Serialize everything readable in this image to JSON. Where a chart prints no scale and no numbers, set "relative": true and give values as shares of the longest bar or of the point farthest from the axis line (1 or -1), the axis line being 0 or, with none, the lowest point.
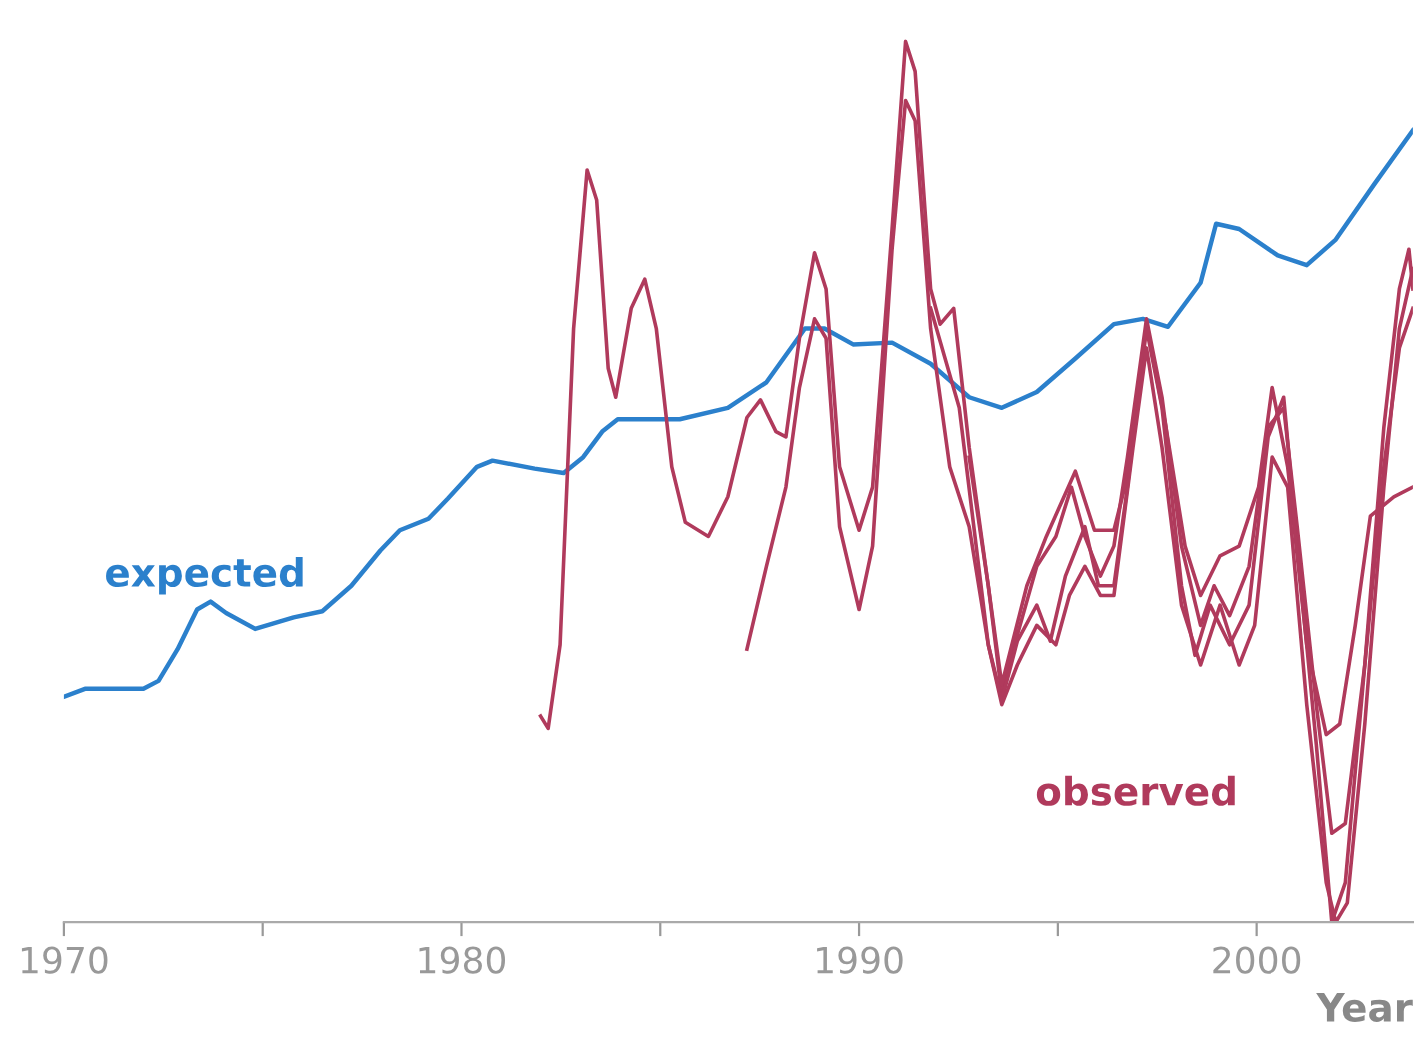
{
  "chart_data": {
    "type": "line",
    "relative": true,
    "xlabel": "Year",
    "xlim": [
      1970,
      2003.93
    ],
    "xticks": [
      1970,
      {
        "value": 1975,
        "label": null
      },
      1980,
      {
        "value": 1985,
        "label": null
      },
      1990,
      {
        "value": 1995,
        "label": null
      },
      2000
    ],
    "grid": false,
    "legend": false,
    "marker": "none",
    "line_style": "solid",
    "series": [
      {
        "name": "expected",
        "color": "#2b80cc",
        "x": [
          1970.0,
          1970.53,
          1972.0,
          1972.38,
          1972.86,
          1973.35,
          1973.69,
          1974.08,
          1974.81,
          1975.78,
          1976.5,
          1977.23,
          1977.96,
          1978.45,
          1979.17,
          1979.66,
          1980.39,
          1980.78,
          1981.84,
          1982.57,
          1983.06,
          1983.54,
          1983.93,
          1985.49,
          1986.7,
          1987.67,
          1988.64,
          1989.13,
          1989.85,
          1990.83,
          1991.8,
          1992.77,
          1993.59,
          1994.47,
          1995.44,
          1996.41,
          1997.14,
          1997.77,
          1998.59,
          1998.98,
          1999.56,
          2000.53,
          2001.26,
          2001.99,
          2002.96,
          2003.93
        ],
        "values": [
          0.256,
          0.265,
          0.265,
          0.274,
          0.31,
          0.355,
          0.364,
          0.351,
          0.333,
          0.346,
          0.353,
          0.382,
          0.422,
          0.445,
          0.458,
          0.481,
          0.517,
          0.524,
          0.515,
          0.51,
          0.528,
          0.557,
          0.571,
          0.571,
          0.584,
          0.613,
          0.674,
          0.674,
          0.656,
          0.658,
          0.634,
          0.596,
          0.584,
          0.602,
          0.64,
          0.679,
          0.685,
          0.676,
          0.726,
          0.793,
          0.787,
          0.757,
          0.746,
          0.775,
          0.838,
          0.899
        ]
      },
      {
        "name": "observed",
        "color": "#b03a5c",
        "x": [
          1981.99,
          1982.18,
          1982.48,
          1982.82,
          1983.16,
          1983.4,
          1983.69,
          1983.88,
          1984.27,
          1984.61,
          1984.9,
          1985.29,
          1985.63,
          1986.21,
          1986.7,
          1987.18,
          1987.52,
          1987.91,
          1988.16,
          1988.5,
          1988.88,
          1989.17,
          1989.51,
          1990.0,
          1990.34,
          1990.83,
          1991.17,
          1991.41,
          1991.8,
          1992.04,
          1992.38,
          1992.77,
          1993.25,
          1993.59,
          1993.98,
          1994.47,
          1994.95,
          1995.34,
          1995.68,
          1996.07,
          1996.41,
          1996.75,
          1997.23,
          1997.62,
          1998.11,
          1998.59,
          1998.93,
          1999.32,
          1999.81,
          2000.29,
          2000.68,
          2001.02,
          2001.5,
          2001.89,
          2002.23,
          2002.72,
          2003.2,
          2003.59,
          2003.83,
          2003.93
        ],
        "values": [
          0.234,
          0.22,
          0.315,
          0.674,
          0.854,
          0.82,
          0.629,
          0.596,
          0.697,
          0.73,
          0.674,
          0.517,
          0.454,
          0.438,
          0.483,
          0.573,
          0.593,
          0.557,
          0.551,
          0.663,
          0.76,
          0.719,
          0.517,
          0.445,
          0.494,
          0.787,
          1.0,
          0.966,
          0.719,
          0.679,
          0.697,
          0.539,
          0.382,
          0.258,
          0.326,
          0.404,
          0.438,
          0.494,
          0.438,
          0.393,
          0.427,
          0.528,
          0.685,
          0.596,
          0.427,
          0.337,
          0.382,
          0.348,
          0.404,
          0.562,
          0.584,
          0.449,
          0.247,
          0.101,
          0.112,
          0.292,
          0.562,
          0.719,
          0.764,
          0.719
        ]
      },
      {
        "color": "#b03a5c",
        "x": [
          1987.18,
          1987.67,
          1988.16,
          1988.5,
          1988.88,
          1989.17,
          1989.51,
          1990.0,
          1990.34,
          1990.83,
          1991.17,
          1991.41,
          1991.8,
          1992.28,
          1992.77,
          1993.25,
          1993.59,
          1993.98,
          1994.47,
          1994.81,
          1995.19,
          1995.68,
          1996.02,
          1996.41,
          1996.75,
          1997.23,
          1997.62,
          1998.11,
          1998.45,
          1998.83,
          1999.32,
          1999.81,
          2000.29,
          2000.68,
          2001.02,
          2001.5,
          2001.89,
          2002.23,
          2002.72,
          2003.2,
          2003.59,
          2003.93
        ],
        "values": [
          0.31,
          0.404,
          0.494,
          0.607,
          0.685,
          0.663,
          0.449,
          0.355,
          0.427,
          0.764,
          0.933,
          0.91,
          0.674,
          0.517,
          0.449,
          0.315,
          0.252,
          0.319,
          0.36,
          0.319,
          0.393,
          0.449,
          0.382,
          0.382,
          0.494,
          0.674,
          0.584,
          0.382,
          0.303,
          0.36,
          0.315,
          0.36,
          0.551,
          0.596,
          0.427,
          0.202,
          0.0,
          0.045,
          0.292,
          0.517,
          0.652,
          0.697
        ]
      },
      {
        "color": "#b03a5c",
        "x": [
          1992.77,
          1993.25,
          1993.59,
          1994.22,
          1994.71,
          1995.44,
          1995.92,
          1996.41,
          1996.75,
          1997.23,
          1997.72,
          1998.2,
          1998.59,
          1999.08,
          1999.56,
          2000.05,
          2000.39,
          2000.78,
          2001.26,
          2001.75,
          2002.09,
          2002.48,
          2002.86,
          2003.45,
          2003.93
        ],
        "values": [
          0.528,
          0.382,
          0.27,
          0.382,
          0.438,
          0.512,
          0.445,
          0.445,
          0.506,
          0.679,
          0.562,
          0.427,
          0.371,
          0.416,
          0.427,
          0.494,
          0.607,
          0.517,
          0.315,
          0.213,
          0.225,
          0.337,
          0.461,
          0.483,
          0.494
        ]
      },
      {
        "color": "#b03a5c",
        "x": [
          1991.8,
          1992.52,
          1993.25,
          1993.59,
          1993.98,
          1994.47,
          1994.95,
          1995.29,
          1995.68,
          1996.07,
          1996.41,
          1996.89,
          1997.23,
          1997.62,
          1998.11,
          1998.59,
          1999.08,
          1999.56,
          1999.95,
          2000.39,
          2000.78,
          2001.26,
          2001.75,
          2001.99,
          2002.28,
          2002.72,
          2003.2,
          2003.59,
          2003.93
        ],
        "values": [
          0.697,
          0.584,
          0.315,
          0.247,
          0.292,
          0.337,
          0.315,
          0.371,
          0.404,
          0.371,
          0.371,
          0.539,
          0.652,
          0.539,
          0.36,
          0.292,
          0.36,
          0.292,
          0.337,
          0.528,
          0.494,
          0.247,
          0.045,
          0.0,
          0.022,
          0.225,
          0.494,
          0.674,
          0.742
        ]
      }
    ]
  }
}
